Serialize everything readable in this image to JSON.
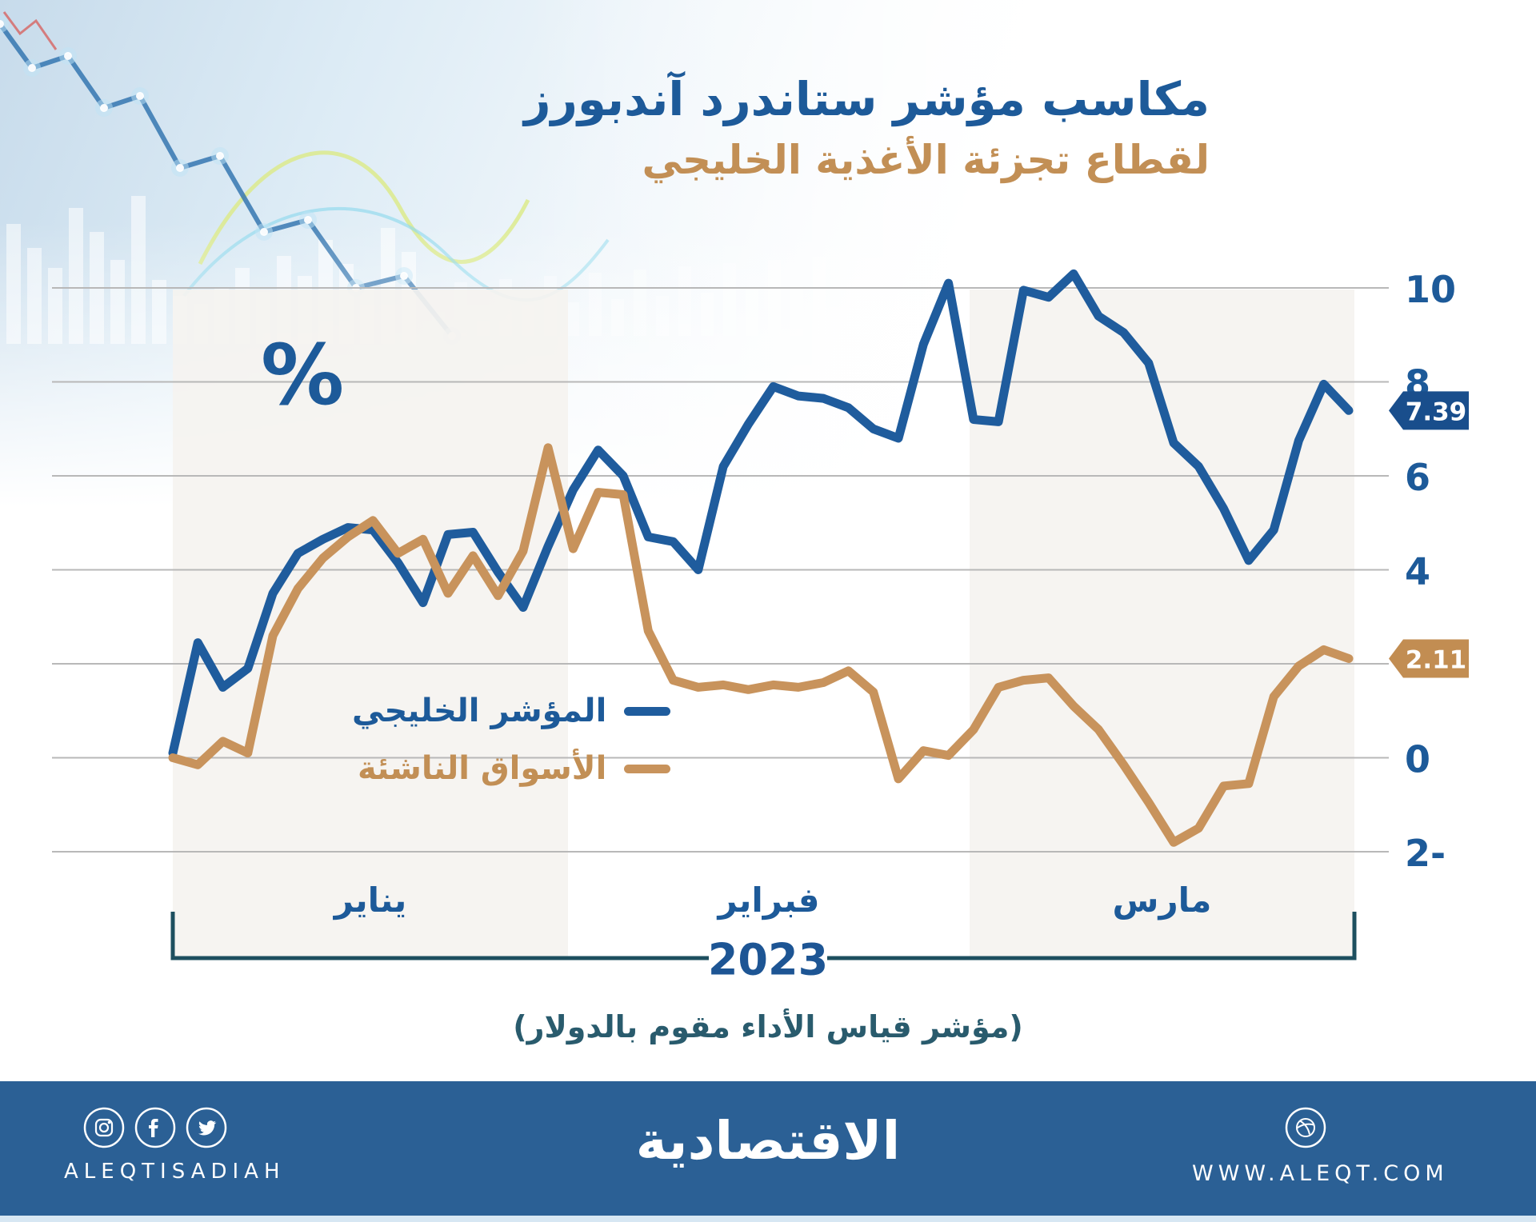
{
  "title": {
    "line1": "مكاسب مؤشر ستاندرد آندبورز",
    "line2": "لقطاع تجزئة الأغذية الخليجي"
  },
  "caption": "(مؤشر قياس الأداء مقوم بالدولار)",
  "legend": {
    "gulf_label": "المؤشر الخليجي",
    "emerging_label": "الأسواق الناشئة"
  },
  "colors": {
    "blue_line": "#1f5c9d",
    "tan_line": "#c8935c",
    "blue_tag": "#194e8c",
    "tan_tag": "#c28d52",
    "band": "#f5f3f0",
    "grid": "#b8b8b8",
    "bracket": "#1d4f5f",
    "label_blue": "#1d5a99",
    "footer_bg": "#2b6095"
  },
  "chart_data": {
    "type": "line",
    "unit": "%",
    "title": "مكاسب مؤشر ستاندرد آندبورز لقطاع تجزئة الأغذية الخليجي",
    "grid": true,
    "legend_position": "middle-left",
    "ylim": [
      -2.8,
      11
    ],
    "x_axis": {
      "year_label": "2023",
      "months": [
        {
          "label": "يناير",
          "shaded": true
        },
        {
          "label": "فبراير",
          "shaded": false
        },
        {
          "label": "مارس",
          "shaded": true
        }
      ]
    },
    "y_ticks": [
      {
        "value": 10,
        "label": "10"
      },
      {
        "value": 8,
        "label": "8"
      },
      {
        "value": 6,
        "label": "6"
      },
      {
        "value": 4,
        "label": "4"
      },
      {
        "value": 2,
        "label": ""
      },
      {
        "value": 0,
        "label": "0"
      },
      {
        "value": -2,
        "label": "2-"
      }
    ],
    "series": [
      {
        "name": "المؤشر الخليجي",
        "color": "#1f5c9d",
        "tag_color": "#194e8c",
        "end_label": "7.39",
        "end_value": 7.39,
        "values": [
          0.1,
          2.45,
          1.5,
          1.9,
          3.5,
          4.35,
          4.65,
          4.9,
          4.85,
          4.15,
          3.3,
          4.75,
          4.8,
          3.95,
          3.2,
          4.5,
          5.7,
          6.55,
          6.0,
          4.7,
          4.6,
          4.0,
          6.2,
          7.1,
          7.9,
          7.7,
          7.65,
          7.45,
          7.0,
          6.8,
          8.8,
          10.1,
          7.2,
          7.15,
          9.95,
          9.8,
          10.3,
          9.4,
          9.05,
          8.4,
          6.7,
          6.2,
          5.3,
          4.2,
          4.85,
          6.75,
          7.95,
          7.39
        ]
      },
      {
        "name": "الأسواق الناشئة",
        "color": "#c8935c",
        "tag_color": "#c28d52",
        "end_label": "2.11",
        "end_value": 2.11,
        "values": [
          0.0,
          -0.15,
          0.35,
          0.1,
          2.6,
          3.6,
          4.25,
          4.7,
          5.05,
          4.35,
          4.65,
          3.5,
          4.3,
          3.45,
          4.4,
          6.6,
          4.45,
          5.65,
          5.6,
          2.7,
          1.65,
          1.5,
          1.55,
          1.45,
          1.55,
          1.5,
          1.6,
          1.85,
          1.4,
          -0.45,
          0.15,
          0.05,
          0.6,
          1.5,
          1.65,
          1.7,
          1.1,
          0.6,
          -0.15,
          -0.95,
          -1.8,
          -1.5,
          -0.6,
          -0.55,
          1.3,
          1.95,
          2.3,
          2.11
        ]
      }
    ]
  },
  "footer": {
    "brand_latin": "ALEQTISADIAH",
    "logo_arabic": "الاقتصادية",
    "website": "WWW.ALEQT.COM",
    "icons": [
      "instagram-icon",
      "facebook-icon",
      "twitter-icon",
      "dribbble-icon"
    ]
  }
}
